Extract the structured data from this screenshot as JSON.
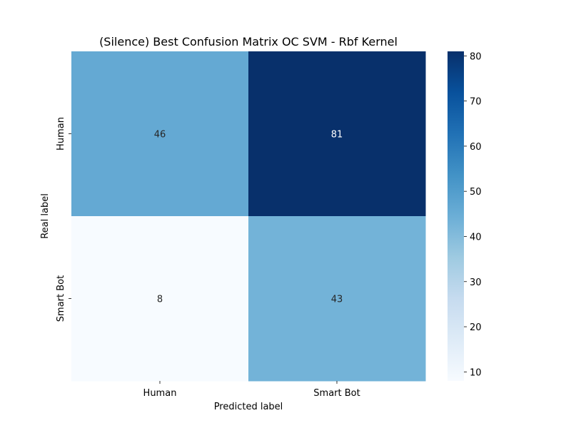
{
  "chart_data": {
    "type": "heatmap",
    "title": "(Silence) Best Confusion Matrix OC SVM - Rbf Kernel",
    "xlabel": "Predicted label",
    "ylabel": "Real label",
    "x_categories": [
      "Human",
      "Smart Bot"
    ],
    "y_categories": [
      "Human",
      "Smart Bot"
    ],
    "values": [
      [
        46,
        81
      ],
      [
        8,
        43
      ]
    ],
    "colorbar": {
      "min": 8,
      "max": 81,
      "ticks": [
        10,
        20,
        30,
        40,
        50,
        60,
        70,
        80
      ],
      "colormap": "Blues"
    },
    "colors": {
      "low": "#f7fbff",
      "high": "#08306b"
    }
  }
}
